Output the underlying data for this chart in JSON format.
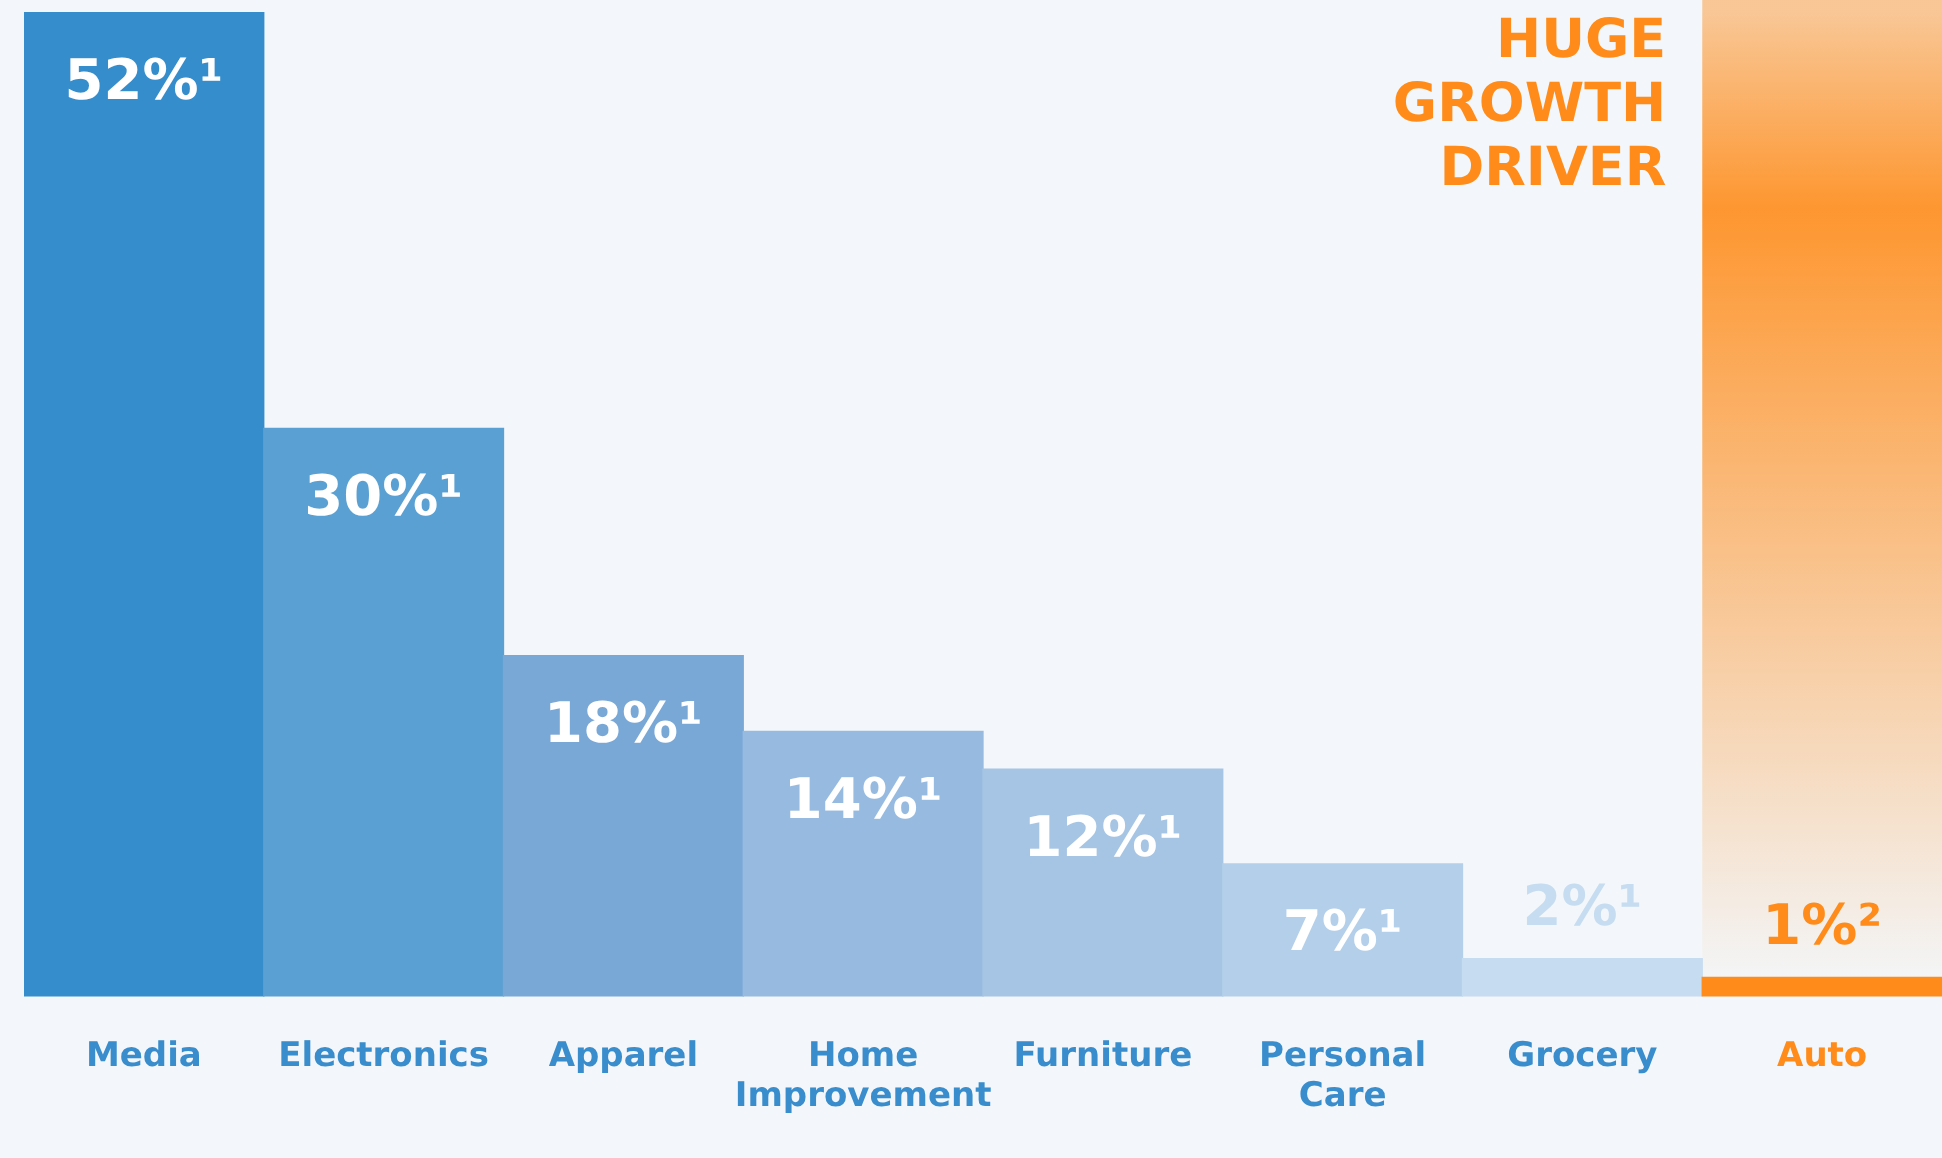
{
  "chart_data": {
    "type": "bar",
    "categories": [
      "Media",
      "Electronics",
      "Apparel",
      "Home Improvement",
      "Furniture",
      "Personal Care",
      "Grocery",
      "Auto"
    ],
    "values": [
      52,
      30,
      18,
      14,
      12,
      7,
      2,
      1
    ],
    "value_labels": [
      "52%¹",
      "30%¹",
      "18%¹",
      "14%¹",
      "12%¹",
      "7%¹",
      "2%¹",
      "1%²"
    ],
    "colors": [
      "#358dcc",
      "#5ba0d2",
      "#79a7d6",
      "#97bbe0",
      "#a6c4e3",
      "#b3cfe9",
      "#c6dcf0",
      "#ff8c1a"
    ],
    "ylim": [
      0,
      52
    ],
    "tick_labels": "x",
    "grid": false,
    "legend": false,
    "bands": [
      {
        "axis": "x",
        "from": "Auto",
        "to": "Auto",
        "label": "HUGE GROWTH DRIVER",
        "color": "#ff8c1a"
      }
    ]
  }
}
